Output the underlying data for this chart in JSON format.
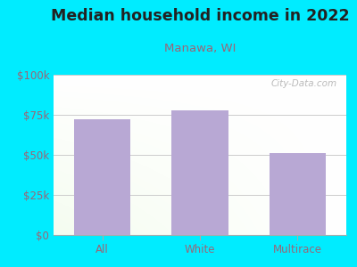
{
  "title": "Median household income in 2022",
  "subtitle": "Manawa, WI",
  "categories": [
    "All",
    "White",
    "Multirace"
  ],
  "values": [
    72000,
    78000,
    51000
  ],
  "bar_color": "#b8a8d4",
  "background_outer": "#00ecff",
  "title_fontsize": 12.5,
  "title_color": "#222222",
  "subtitle_fontsize": 9.5,
  "subtitle_color": "#996677",
  "tick_color": "#996677",
  "tick_fontsize": 8.5,
  "ylim": [
    0,
    100000
  ],
  "yticks": [
    0,
    25000,
    50000,
    75000,
    100000
  ],
  "ytick_labels": [
    "$0",
    "$25k",
    "$50k",
    "$75k",
    "$100k"
  ],
  "watermark": "City-Data.com",
  "grid_color": "#cccccc"
}
